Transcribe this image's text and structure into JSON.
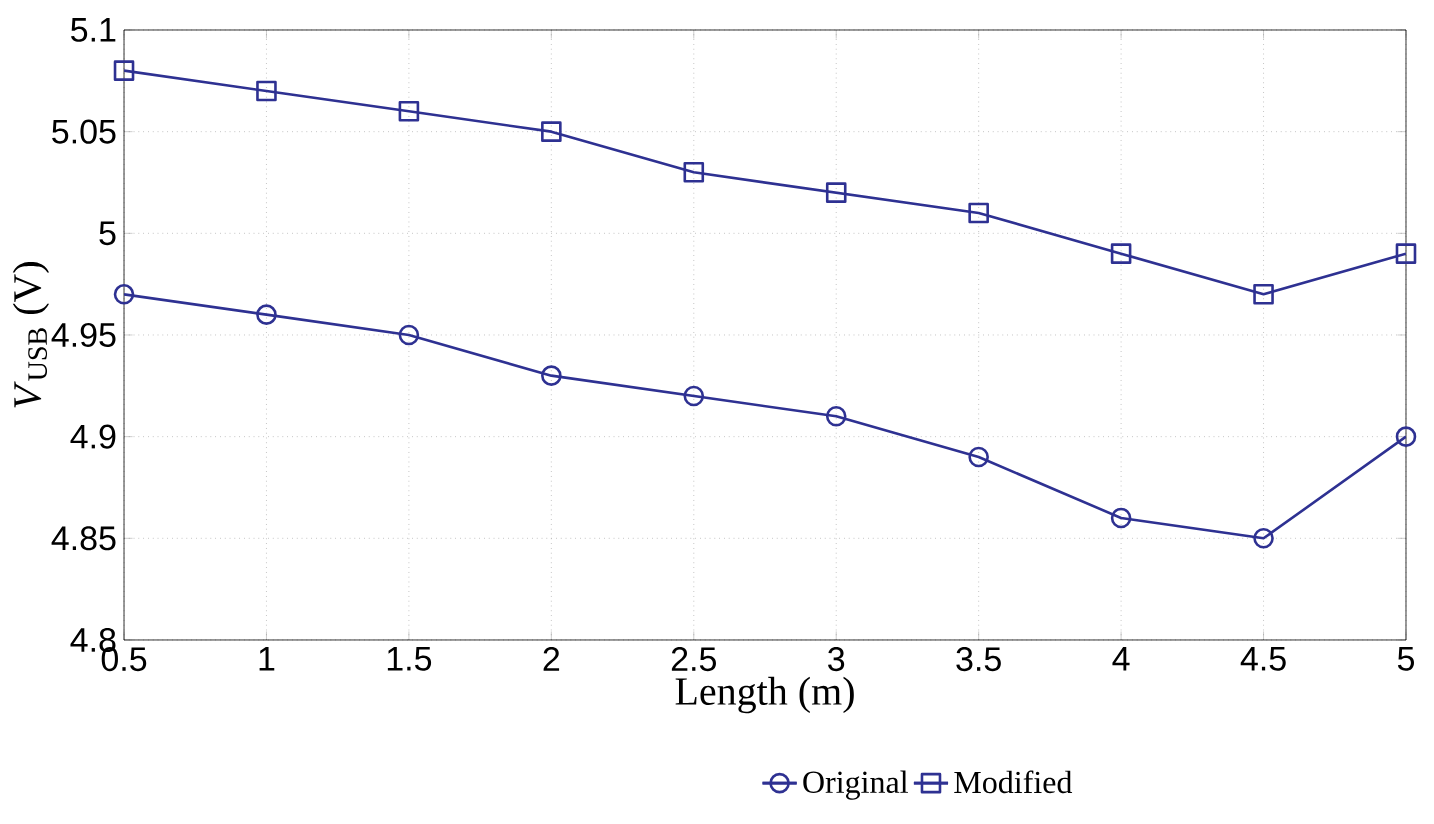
{
  "chart_data": {
    "type": "line",
    "xlabel": "Length (m)",
    "ylabel": "*V*$_{USB}$ (V)",
    "x": [
      0.5,
      1,
      1.5,
      2,
      2.5,
      3,
      3.5,
      4,
      4.5,
      5
    ],
    "series": [
      {
        "name": "Original",
        "color": "#2e3192",
        "marker": "circle",
        "values": [
          4.97,
          4.96,
          4.95,
          4.93,
          4.92,
          4.91,
          4.89,
          4.86,
          4.85,
          4.9
        ]
      },
      {
        "name": "Modified",
        "color": "#2e3192",
        "marker": "square",
        "values": [
          5.08,
          5.07,
          5.06,
          5.05,
          5.03,
          5.02,
          5.01,
          4.99,
          4.97,
          4.99
        ]
      }
    ],
    "xlim": [
      0.5,
      5
    ],
    "ylim": [
      4.8,
      5.1
    ],
    "xticks": [
      0.5,
      1,
      1.5,
      2,
      2.5,
      3,
      3.5,
      4,
      4.5,
      5
    ],
    "yticks": [
      4.8,
      4.85,
      4.9,
      4.95,
      5,
      5.05,
      5.1
    ],
    "grid": true,
    "legend": "bottom",
    "line_style": "solid"
  }
}
